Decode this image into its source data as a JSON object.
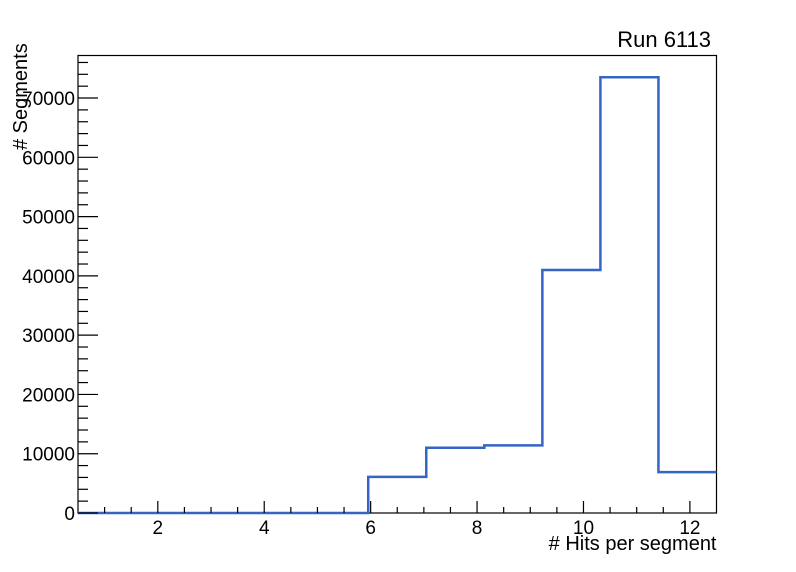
{
  "title": "Run 6113",
  "chart_data": {
    "type": "histogram",
    "title": "Run 6113",
    "xlabel": "# Hits per segment",
    "ylabel": "# Segments",
    "xlim": [
      0.5,
      12.5
    ],
    "ylim": [
      0,
      77175
    ],
    "n_bins": 11,
    "bin_start": 0.5,
    "bin_width": 1.090909,
    "bin_edges": [
      0.5,
      1.59,
      2.68,
      3.77,
      4.86,
      5.95,
      7.05,
      8.14,
      9.23,
      10.32,
      11.41,
      12.5
    ],
    "counts": [
      0,
      0,
      0,
      0,
      0,
      6100,
      11000,
      11400,
      41000,
      73500,
      6900
    ],
    "x_major_ticks": [
      2,
      4,
      6,
      8,
      10,
      12
    ],
    "x_minor_step": 0.5,
    "y_major_ticks": [
      0,
      10000,
      20000,
      30000,
      40000,
      50000,
      60000,
      70000
    ],
    "y_minor_step": 2000,
    "grid": false,
    "legend": "none",
    "line_color": "#3565c4",
    "axis_color": "#000000",
    "background_color": "#ffffff"
  }
}
